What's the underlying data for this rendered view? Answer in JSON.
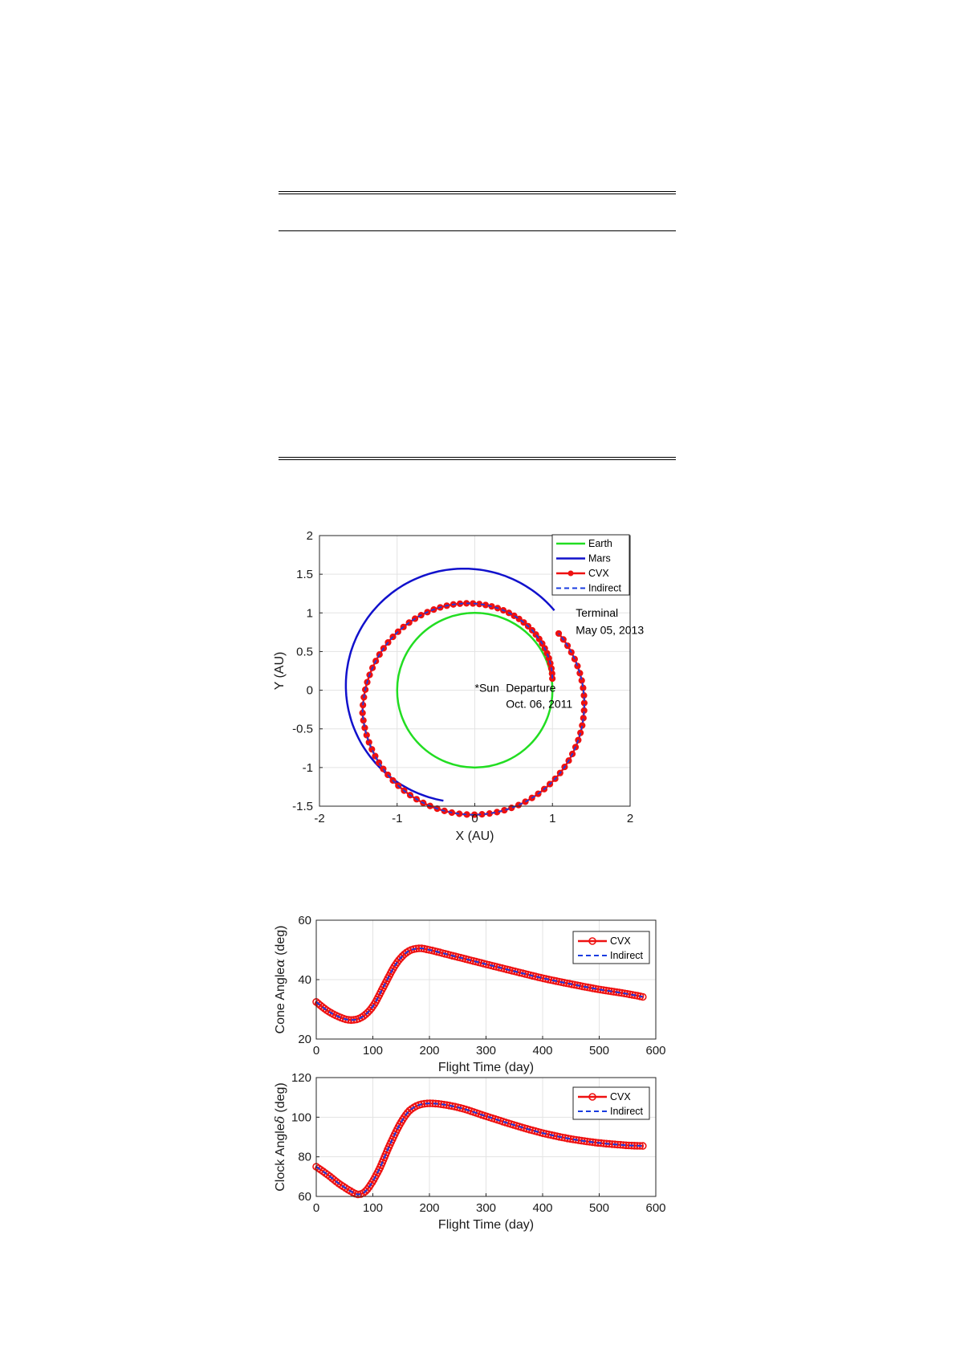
{
  "colors": {
    "earth": "#22dd22",
    "mars": "#1111cc",
    "cvx": "#ee1111",
    "indirect": "#1a3ce0"
  },
  "chart_data": [
    {
      "type": "line",
      "xlabel": "X (AU)",
      "ylabel": "Y (AU)",
      "xlim": [
        -2,
        2
      ],
      "ylim": [
        -1.5,
        2
      ],
      "xticks": [
        -2,
        -1,
        0,
        1,
        2
      ],
      "yticks": [
        -1.5,
        -1,
        -0.5,
        0,
        0.5,
        1,
        1.5,
        2
      ],
      "grid": true,
      "legend_position": "top-right",
      "series": [
        {
          "name": "Earth",
          "shape": "circle",
          "center": [
            0,
            0
          ],
          "radius": 1.0
        },
        {
          "name": "Mars",
          "shape": "orbit",
          "center": [
            -0.14,
            0.06
          ],
          "radius": 1.52,
          "visible_arc_deg": [
            40,
            260
          ]
        },
        {
          "name": "CVX",
          "shape": "transfer-spiral",
          "start_xy": [
            1.0,
            0.15
          ],
          "end_xy": [
            1.12,
            0.93
          ],
          "revolutions": 1.3
        },
        {
          "name": "Indirect",
          "shape": "transfer-spiral",
          "start_xy": [
            1.0,
            0.15
          ],
          "end_xy": [
            1.12,
            0.93
          ],
          "revolutions": 1.3
        }
      ],
      "annotations": [
        {
          "text": "Terminal",
          "x": 1.3,
          "y": 0.95
        },
        {
          "text": "May 05, 2013",
          "x": 1.3,
          "y": 0.73
        },
        {
          "text": "*Sun",
          "x": 0.0,
          "y": -0.02
        },
        {
          "text": "Departure",
          "x": 0.4,
          "y": -0.02
        },
        {
          "text": "Oct. 06, 2011",
          "x": 0.4,
          "y": -0.23
        }
      ]
    },
    {
      "type": "line",
      "xlabel": "Flight Time (day)",
      "ylabel": "Cone Angle α (deg)",
      "ylabel_main": "Cone Angle",
      "ylabel_greek": "α",
      "ylabel_unit": "(deg)",
      "xlim": [
        0,
        600
      ],
      "ylim": [
        20,
        60
      ],
      "xticks": [
        0,
        100,
        200,
        300,
        400,
        500,
        600
      ],
      "yticks": [
        20,
        40,
        60
      ],
      "grid": true,
      "legend_position": "top-right",
      "x": [
        0,
        20,
        40,
        60,
        80,
        100,
        120,
        140,
        160,
        180,
        200,
        250,
        300,
        350,
        400,
        450,
        500,
        550,
        577
      ],
      "series": [
        {
          "name": "CVX",
          "values": [
            32.5,
            29.5,
            27.5,
            26.4,
            27.3,
            31.0,
            38.0,
            45.0,
            49.2,
            50.5,
            50.0,
            47.6,
            45.2,
            42.8,
            40.5,
            38.5,
            36.7,
            35.2,
            34.2
          ]
        },
        {
          "name": "Indirect",
          "values": [
            32.5,
            29.5,
            27.5,
            26.4,
            27.3,
            31.0,
            38.0,
            45.0,
            49.2,
            50.5,
            50.0,
            47.6,
            45.2,
            42.8,
            40.5,
            38.5,
            36.7,
            35.2,
            34.2
          ]
        }
      ]
    },
    {
      "type": "line",
      "xlabel": "Flight Time (day)",
      "ylabel": "Clock Angle δ (deg)",
      "ylabel_main": "Clock Angle",
      "ylabel_greek": "δ",
      "ylabel_unit": "(deg)",
      "xlim": [
        0,
        600
      ],
      "ylim": [
        60,
        120
      ],
      "xticks": [
        0,
        100,
        200,
        300,
        400,
        500,
        600
      ],
      "yticks": [
        60,
        80,
        100,
        120
      ],
      "grid": true,
      "legend_position": "top-right",
      "x": [
        0,
        20,
        40,
        60,
        75,
        90,
        110,
        130,
        150,
        170,
        200,
        250,
        300,
        350,
        400,
        450,
        500,
        550,
        577
      ],
      "series": [
        {
          "name": "CVX",
          "values": [
            75.0,
            71.0,
            66.5,
            62.8,
            61.0,
            63.5,
            73.0,
            86.0,
            97.5,
            104.5,
            107.0,
            105.0,
            100.5,
            96.0,
            92.0,
            89.0,
            87.0,
            85.8,
            85.5
          ]
        },
        {
          "name": "Indirect",
          "values": [
            75.0,
            71.0,
            66.5,
            62.8,
            61.0,
            63.5,
            73.0,
            86.0,
            97.5,
            104.5,
            107.0,
            105.0,
            100.5,
            96.0,
            92.0,
            89.0,
            87.0,
            85.8,
            85.5
          ]
        }
      ]
    }
  ]
}
